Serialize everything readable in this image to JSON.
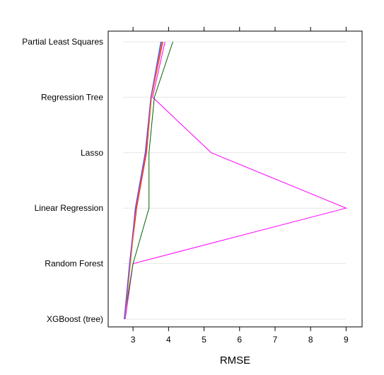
{
  "chart_data": {
    "type": "line",
    "xlabel": "RMSE",
    "xlim": [
      2.3,
      9.45
    ],
    "xticks": [
      3,
      4,
      5,
      6,
      7,
      8,
      9
    ],
    "categories": [
      "Partial Least Squares",
      "Regression Tree",
      "Lasso",
      "Linear Regression",
      "Random Forest",
      "XGBoost (tree)"
    ],
    "grid": true,
    "series": [
      {
        "color": "#ff00ff",
        "values": [
          3.9,
          3.55,
          5.2,
          9.0,
          3.0,
          2.78
        ]
      },
      {
        "color": "#006400",
        "values": [
          4.12,
          3.6,
          3.45,
          3.45,
          3.0,
          2.75
        ]
      },
      {
        "color": "#ff0000",
        "values": [
          3.84,
          3.52,
          3.38,
          3.1,
          2.92,
          2.76
        ]
      },
      {
        "color": "#ff8c00",
        "values": [
          3.82,
          3.52,
          3.36,
          3.08,
          2.93,
          2.77
        ]
      },
      {
        "color": "#1e90ff",
        "values": [
          3.78,
          3.5,
          3.34,
          3.06,
          2.91,
          2.76
        ]
      },
      {
        "color": "#8a2be2",
        "values": [
          3.8,
          3.5,
          3.35,
          3.07,
          2.9,
          2.75
        ]
      }
    ]
  }
}
